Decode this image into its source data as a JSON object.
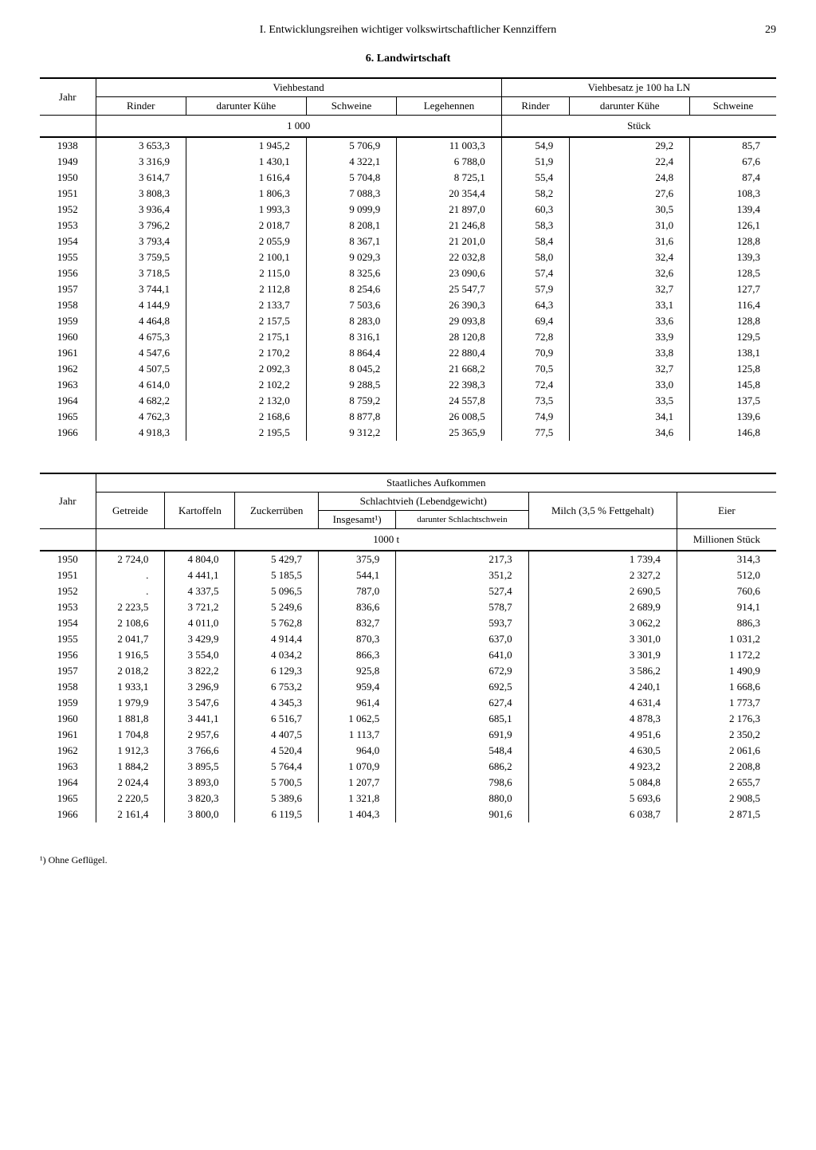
{
  "page": {
    "header": "I. Entwicklungsreihen wichtiger volkswirtschaftlicher Kennziffern",
    "number": "29",
    "section_title": "6. Landwirtschaft"
  },
  "table1": {
    "col_jahr": "Jahr",
    "group1": "Viehbestand",
    "group2": "Viehbesatz je 100 ha LN",
    "cols": {
      "rinder": "Rinder",
      "kuhe": "darunter Kühe",
      "schweine": "Schweine",
      "legehennen": "Legehennen",
      "rinder2": "Rinder",
      "kuhe2": "darunter Kühe",
      "schweine2": "Schweine"
    },
    "unit1": "1 000",
    "unit2": "Stück",
    "rows": [
      {
        "y": "1938",
        "c": [
          "3 653,3",
          "1 945,2",
          "5 706,9",
          "11 003,3",
          "54,9",
          "29,2",
          "85,7"
        ]
      },
      {
        "y": "1949",
        "c": [
          "3 316,9",
          "1 430,1",
          "4 322,1",
          "6 788,0",
          "51,9",
          "22,4",
          "67,6"
        ]
      },
      {
        "y": "1950",
        "c": [
          "3 614,7",
          "1 616,4",
          "5 704,8",
          "8 725,1",
          "55,4",
          "24,8",
          "87,4"
        ]
      },
      {
        "y": "1951",
        "c": [
          "3 808,3",
          "1 806,3",
          "7 088,3",
          "20 354,4",
          "58,2",
          "27,6",
          "108,3"
        ]
      },
      {
        "y": "1952",
        "c": [
          "3 936,4",
          "1 993,3",
          "9 099,9",
          "21 897,0",
          "60,3",
          "30,5",
          "139,4"
        ]
      },
      {
        "y": "1953",
        "c": [
          "3 796,2",
          "2 018,7",
          "8 208,1",
          "21 246,8",
          "58,3",
          "31,0",
          "126,1"
        ]
      },
      {
        "y": "1954",
        "c": [
          "3 793,4",
          "2 055,9",
          "8 367,1",
          "21 201,0",
          "58,4",
          "31,6",
          "128,8"
        ]
      },
      {
        "y": "1955",
        "c": [
          "3 759,5",
          "2 100,1",
          "9 029,3",
          "22 032,8",
          "58,0",
          "32,4",
          "139,3"
        ]
      },
      {
        "y": "1956",
        "c": [
          "3 718,5",
          "2 115,0",
          "8 325,6",
          "23 090,6",
          "57,4",
          "32,6",
          "128,5"
        ]
      },
      {
        "y": "1957",
        "c": [
          "3 744,1",
          "2 112,8",
          "8 254,6",
          "25 547,7",
          "57,9",
          "32,7",
          "127,7"
        ]
      },
      {
        "y": "1958",
        "c": [
          "4 144,9",
          "2 133,7",
          "7 503,6",
          "26 390,3",
          "64,3",
          "33,1",
          "116,4"
        ]
      },
      {
        "y": "1959",
        "c": [
          "4 464,8",
          "2 157,5",
          "8 283,0",
          "29 093,8",
          "69,4",
          "33,6",
          "128,8"
        ]
      },
      {
        "y": "1960",
        "c": [
          "4 675,3",
          "2 175,1",
          "8 316,1",
          "28 120,8",
          "72,8",
          "33,9",
          "129,5"
        ]
      },
      {
        "y": "1961",
        "c": [
          "4 547,6",
          "2 170,2",
          "8 864,4",
          "22 880,4",
          "70,9",
          "33,8",
          "138,1"
        ]
      },
      {
        "y": "1962",
        "c": [
          "4 507,5",
          "2 092,3",
          "8 045,2",
          "21 668,2",
          "70,5",
          "32,7",
          "125,8"
        ]
      },
      {
        "y": "1963",
        "c": [
          "4 614,0",
          "2 102,2",
          "9 288,5",
          "22 398,3",
          "72,4",
          "33,0",
          "145,8"
        ]
      },
      {
        "y": "1964",
        "c": [
          "4 682,2",
          "2 132,0",
          "8 759,2",
          "24 557,8",
          "73,5",
          "33,5",
          "137,5"
        ]
      },
      {
        "y": "1965",
        "c": [
          "4 762,3",
          "2 168,6",
          "8 877,8",
          "26 008,5",
          "74,9",
          "34,1",
          "139,6"
        ]
      },
      {
        "y": "1966",
        "c": [
          "4 918,3",
          "2 195,5",
          "9 312,2",
          "25 365,9",
          "77,5",
          "34,6",
          "146,8"
        ]
      }
    ]
  },
  "table2": {
    "col_jahr": "Jahr",
    "group_main": "Staatliches Aufkommen",
    "group_schlacht": "Schlachtvieh (Lebendgewicht)",
    "cols": {
      "getreide": "Getreide",
      "kartoffeln": "Kartoffeln",
      "zucker": "Zuckerrüben",
      "insgesamt": "Insgesamt¹)",
      "darunter": "darunter Schlachtschwein",
      "milch": "Milch (3,5 % Fettgehalt)",
      "eier": "Eier"
    },
    "unit1": "1000 t",
    "unit2": "Millionen Stück",
    "rows": [
      {
        "y": "1950",
        "c": [
          "2 724,0",
          "4 804,0",
          "5 429,7",
          "375,9",
          "217,3",
          "1 739,4",
          "314,3"
        ]
      },
      {
        "y": "1951",
        "c": [
          ".",
          "4 441,1",
          "5 185,5",
          "544,1",
          "351,2",
          "2 327,2",
          "512,0"
        ]
      },
      {
        "y": "1952",
        "c": [
          ".",
          "4 337,5",
          "5 096,5",
          "787,0",
          "527,4",
          "2 690,5",
          "760,6"
        ]
      },
      {
        "y": "1953",
        "c": [
          "2 223,5",
          "3 721,2",
          "5 249,6",
          "836,6",
          "578,7",
          "2 689,9",
          "914,1"
        ]
      },
      {
        "y": "1954",
        "c": [
          "2 108,6",
          "4 011,0",
          "5 762,8",
          "832,7",
          "593,7",
          "3 062,2",
          "886,3"
        ]
      },
      {
        "y": "1955",
        "c": [
          "2 041,7",
          "3 429,9",
          "4 914,4",
          "870,3",
          "637,0",
          "3 301,0",
          "1 031,2"
        ]
      },
      {
        "y": "1956",
        "c": [
          "1 916,5",
          "3 554,0",
          "4 034,2",
          "866,3",
          "641,0",
          "3 301,9",
          "1 172,2"
        ]
      },
      {
        "y": "1957",
        "c": [
          "2 018,2",
          "3 822,2",
          "6 129,3",
          "925,8",
          "672,9",
          "3 586,2",
          "1 490,9"
        ]
      },
      {
        "y": "1958",
        "c": [
          "1 933,1",
          "3 296,9",
          "6 753,2",
          "959,4",
          "692,5",
          "4 240,1",
          "1 668,6"
        ]
      },
      {
        "y": "1959",
        "c": [
          "1 979,9",
          "3 547,6",
          "4 345,3",
          "961,4",
          "627,4",
          "4 631,4",
          "1 773,7"
        ]
      },
      {
        "y": "1960",
        "c": [
          "1 881,8",
          "3 441,1",
          "6 516,7",
          "1 062,5",
          "685,1",
          "4 878,3",
          "2 176,3"
        ]
      },
      {
        "y": "1961",
        "c": [
          "1 704,8",
          "2 957,6",
          "4 407,5",
          "1 113,7",
          "691,9",
          "4 951,6",
          "2 350,2"
        ]
      },
      {
        "y": "1962",
        "c": [
          "1 912,3",
          "3 766,6",
          "4 520,4",
          "964,0",
          "548,4",
          "4 630,5",
          "2 061,6"
        ]
      },
      {
        "y": "1963",
        "c": [
          "1 884,2",
          "3 895,5",
          "5 764,4",
          "1 070,9",
          "686,2",
          "4 923,2",
          "2 208,8"
        ]
      },
      {
        "y": "1964",
        "c": [
          "2 024,4",
          "3 893,0",
          "5 700,5",
          "1 207,7",
          "798,6",
          "5 084,8",
          "2 655,7"
        ]
      },
      {
        "y": "1965",
        "c": [
          "2 220,5",
          "3 820,3",
          "5 389,6",
          "1 321,8",
          "880,0",
          "5 693,6",
          "2 908,5"
        ]
      },
      {
        "y": "1966",
        "c": [
          "2 161,4",
          "3 800,0",
          "6 119,5",
          "1 404,3",
          "901,6",
          "6 038,7",
          "2 871,5"
        ]
      }
    ]
  },
  "footnote": "¹) Ohne Geflügel."
}
